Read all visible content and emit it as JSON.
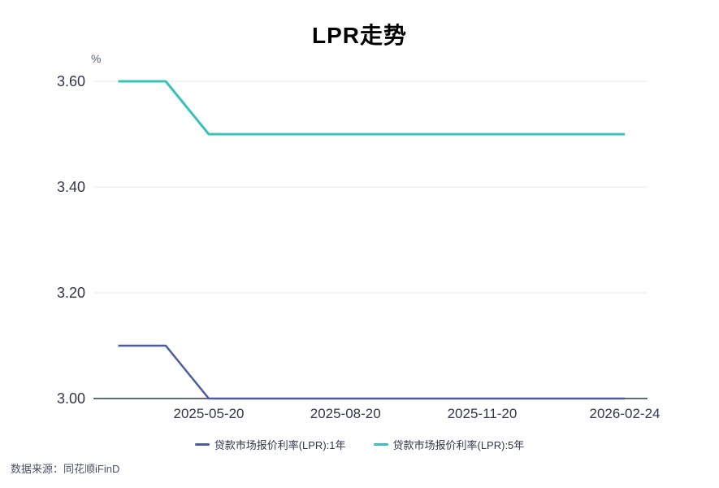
{
  "title": "LPR走势",
  "source_note": "数据来源：同花顺iFinD",
  "colors": {
    "lpr_1y_line": "#4c5b9e",
    "lpr_5y_line": "#35c3b7",
    "gridline": "#e9eaf2",
    "axis_line": "#5e6b87",
    "tick_text": "#33364b",
    "title_text": "#000000",
    "source_text": "#4b5064"
  },
  "chart_data": {
    "type": "line",
    "title": "LPR走势",
    "xlabel": "",
    "ylabel": "%",
    "ylim": [
      3.0,
      3.6
    ],
    "grid": true,
    "legend_position": "bottom",
    "y_ticks": [
      {
        "value": 3.6,
        "label": "3.60"
      },
      {
        "value": 3.4,
        "label": "3.40"
      },
      {
        "value": 3.2,
        "label": "3.20"
      },
      {
        "value": 3.0,
        "label": "3.00"
      }
    ],
    "x_ticks": [
      "2025-05-20",
      "2025-08-20",
      "2025-11-20",
      "2026-02-24"
    ],
    "series": [
      {
        "name": "贷款市场报价利率(LPR):1年",
        "color": "#4c5b9e",
        "points": [
          [
            "2025-03-20",
            3.1
          ],
          [
            "2025-04-21",
            3.1
          ],
          [
            "2025-05-20",
            3.0
          ],
          [
            "2026-02-24",
            3.0
          ]
        ]
      },
      {
        "name": "贷款市场报价利率(LPR):5年",
        "color": "#35c3b7",
        "points": [
          [
            "2025-03-20",
            3.6
          ],
          [
            "2025-04-21",
            3.6
          ],
          [
            "2025-05-20",
            3.5
          ],
          [
            "2026-02-24",
            3.5
          ]
        ]
      }
    ]
  }
}
